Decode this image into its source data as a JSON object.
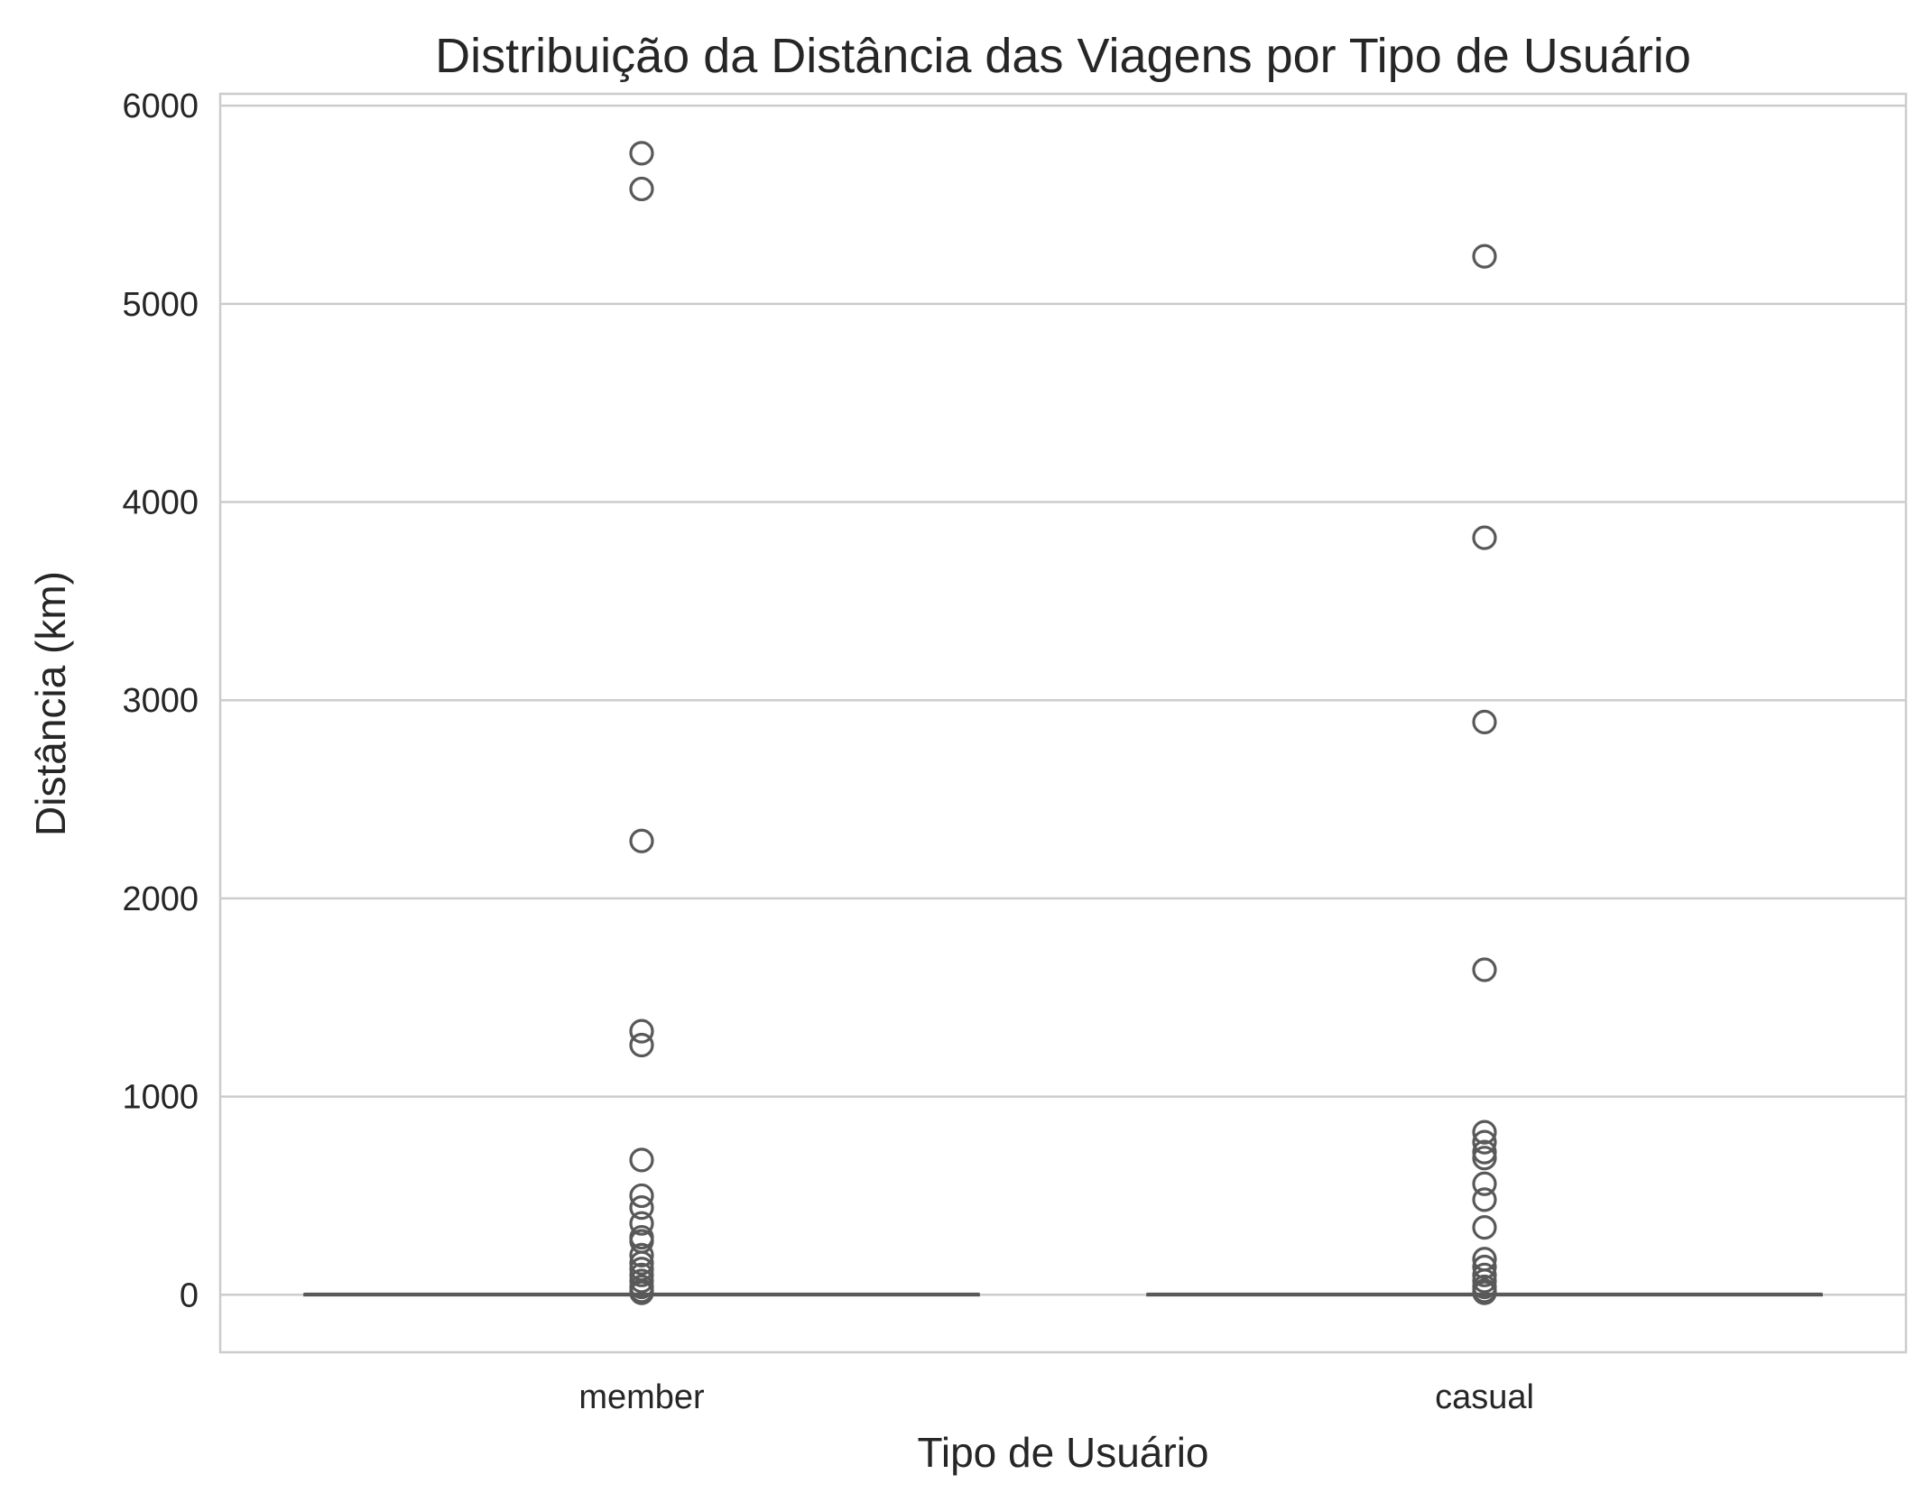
{
  "chart_data": {
    "type": "box",
    "title": "Distribuição da Distância das Viagens por Tipo de Usuário",
    "xlabel": "Tipo de Usuário",
    "ylabel": "Distância (km)",
    "ylim": [
      -290,
      6060
    ],
    "yticks": [
      0,
      1000,
      2000,
      3000,
      4000,
      5000,
      6000
    ],
    "grid": "horizontal",
    "categories": [
      "member",
      "casual"
    ],
    "series": [
      {
        "category": "member",
        "q1": 1,
        "median": 2,
        "q3": 4,
        "whisker_low": 0,
        "whisker_high": 8,
        "outliers": [
          5760,
          5580,
          2290,
          1330,
          1260,
          680,
          500,
          440,
          360,
          290,
          270,
          200,
          160,
          130,
          100,
          70,
          40,
          20,
          10
        ]
      },
      {
        "category": "casual",
        "q1": 1,
        "median": 2,
        "q3": 4,
        "whisker_low": 0,
        "whisker_high": 8,
        "outliers": [
          5240,
          3820,
          2890,
          1640,
          820,
          770,
          720,
          690,
          560,
          480,
          340,
          180,
          140,
          100,
          70,
          40,
          20,
          10
        ]
      }
    ],
    "colors": {
      "box": "#595959",
      "grid": "#cccccc"
    }
  }
}
